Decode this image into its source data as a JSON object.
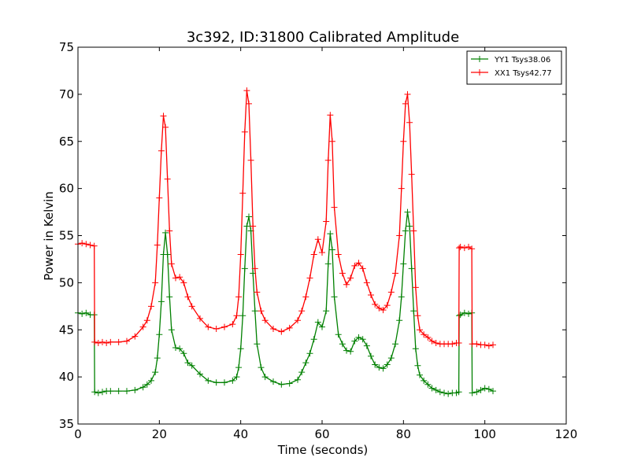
{
  "chart_data": {
    "type": "line",
    "title": "3c392, ID:31800 Calibrated Amplitude",
    "xlabel": "Time (seconds)",
    "ylabel": "Power in Kelvin",
    "xlim": [
      0,
      120
    ],
    "ylim": [
      35,
      75
    ],
    "xticks": [
      0,
      20,
      40,
      60,
      80,
      100,
      120
    ],
    "yticks": [
      35,
      40,
      45,
      50,
      55,
      60,
      65,
      70,
      75
    ],
    "grid": false,
    "legend_position": "top-right",
    "marker": "plus",
    "series": [
      {
        "name": "YY1 Tsys38.06",
        "color": "#008000",
        "x": [
          0,
          1,
          2,
          3,
          4,
          4.1,
          5,
          6,
          7,
          8,
          10,
          12,
          14,
          16,
          17,
          18,
          19,
          19.5,
          20,
          20.5,
          21,
          21.5,
          22,
          22.5,
          23,
          24,
          25,
          26,
          27,
          28,
          30,
          32,
          34,
          36,
          38,
          39,
          39.5,
          40,
          40.5,
          41,
          41.5,
          42,
          42.5,
          43,
          43.5,
          44,
          45,
          46,
          48,
          50,
          52,
          54,
          55,
          56,
          57,
          58,
          59,
          60,
          61,
          61.5,
          62,
          62.5,
          63,
          64,
          65,
          66,
          67,
          68,
          69,
          70,
          71,
          72,
          73,
          74,
          75,
          76,
          77,
          78,
          79,
          79.5,
          80,
          80.5,
          81,
          81.5,
          82,
          82.5,
          83,
          83.5,
          84,
          85,
          86,
          87,
          88,
          89,
          90,
          91,
          92,
          93,
          93.6,
          93.7,
          94,
          95,
          96,
          96.8,
          96.9,
          98,
          99,
          100,
          101,
          102
        ],
        "y": [
          46.8,
          46.7,
          46.8,
          46.6,
          46.6,
          38.4,
          38.3,
          38.4,
          38.5,
          38.5,
          38.5,
          38.5,
          38.6,
          38.9,
          39.2,
          39.6,
          40.5,
          42.0,
          44.5,
          48.0,
          53.0,
          55.3,
          53.0,
          48.5,
          45.0,
          43.1,
          43.0,
          42.5,
          41.5,
          41.2,
          40.3,
          39.6,
          39.4,
          39.4,
          39.6,
          40.0,
          41.0,
          43.0,
          46.5,
          51.5,
          56.0,
          57.0,
          55.5,
          51.0,
          47.0,
          43.5,
          41.0,
          40.0,
          39.5,
          39.2,
          39.3,
          39.7,
          40.5,
          41.5,
          42.5,
          44.0,
          45.8,
          45.3,
          47.0,
          52.0,
          55.2,
          53.5,
          48.5,
          44.5,
          43.5,
          42.8,
          42.7,
          43.8,
          44.2,
          44.0,
          43.3,
          42.2,
          41.3,
          41.0,
          40.9,
          41.3,
          42.0,
          43.5,
          46.0,
          48.5,
          52.0,
          55.5,
          57.5,
          56.0,
          51.5,
          47.0,
          43.0,
          41.2,
          40.2,
          39.6,
          39.2,
          38.8,
          38.6,
          38.4,
          38.3,
          38.2,
          38.3,
          38.3,
          38.4,
          46.5,
          46.6,
          46.8,
          46.7,
          46.8,
          38.3,
          38.4,
          38.6,
          38.8,
          38.7,
          38.5
        ]
      },
      {
        "name": "XX1 Tsys42.77",
        "color": "#ff0000",
        "x": [
          0,
          1,
          2,
          3,
          4,
          4.1,
          5,
          6,
          7,
          8,
          10,
          12,
          14,
          16,
          17,
          18,
          19,
          19.5,
          20,
          20.5,
          21,
          21.5,
          22,
          22.5,
          23,
          24,
          25,
          26,
          27,
          28,
          30,
          32,
          34,
          36,
          38,
          39,
          39.5,
          40,
          40.5,
          41,
          41.5,
          42,
          42.5,
          43,
          43.5,
          44,
          45,
          46,
          48,
          50,
          52,
          54,
          55,
          56,
          57,
          58,
          59,
          60,
          61,
          61.5,
          62,
          62.5,
          63,
          64,
          65,
          66,
          67,
          68,
          69,
          70,
          71,
          72,
          73,
          74,
          75,
          76,
          77,
          78,
          79,
          79.5,
          80,
          80.5,
          81,
          81.5,
          82,
          82.5,
          83,
          83.5,
          84,
          85,
          86,
          87,
          88,
          89,
          90,
          91,
          92,
          93,
          93.6,
          93.7,
          94,
          95,
          96,
          96.8,
          96.9,
          98,
          99,
          100,
          101,
          102
        ],
        "y": [
          54.1,
          54.2,
          54.1,
          54.0,
          53.9,
          43.7,
          43.6,
          43.7,
          43.6,
          43.7,
          43.7,
          43.8,
          44.3,
          45.3,
          46.0,
          47.5,
          50.0,
          54.0,
          59.0,
          64.0,
          67.7,
          66.5,
          61.0,
          55.5,
          52.0,
          50.5,
          50.6,
          50.0,
          48.5,
          47.5,
          46.2,
          45.3,
          45.1,
          45.3,
          45.6,
          46.5,
          48.5,
          53.0,
          59.5,
          66.0,
          70.4,
          69.0,
          63.0,
          56.0,
          51.5,
          49.0,
          47.0,
          46.0,
          45.1,
          44.8,
          45.2,
          46.0,
          47.0,
          48.5,
          50.5,
          53.0,
          54.6,
          53.2,
          56.5,
          63.0,
          67.8,
          65.0,
          58.0,
          53.0,
          51.0,
          49.8,
          50.5,
          51.8,
          52.1,
          51.5,
          50.0,
          48.7,
          47.7,
          47.3,
          47.1,
          47.6,
          49.0,
          51.0,
          55.0,
          60.0,
          65.0,
          69.0,
          70.0,
          67.0,
          61.5,
          55.5,
          49.5,
          46.5,
          45.0,
          44.5,
          44.2,
          43.8,
          43.6,
          43.5,
          43.5,
          43.5,
          43.5,
          43.6,
          43.6,
          53.7,
          53.8,
          53.7,
          53.8,
          53.6,
          43.5,
          43.5,
          43.4,
          43.4,
          43.3,
          43.4
        ]
      }
    ]
  }
}
